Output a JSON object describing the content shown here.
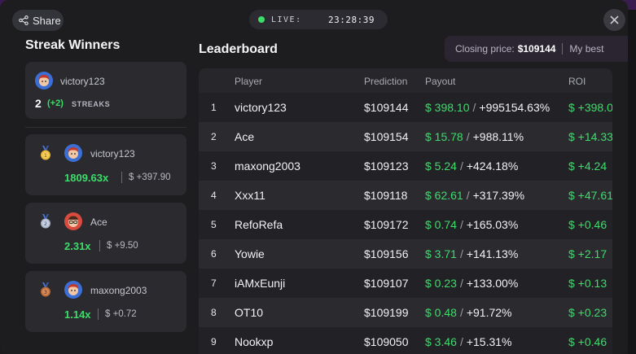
{
  "header": {
    "share_label": "Share",
    "live_label": "LIVE:",
    "time": "23:28:39"
  },
  "streak_winners": {
    "title": "Streak Winners",
    "top": {
      "user": "victory123",
      "count": "2",
      "plus": "(+2)",
      "label": "STREAKS"
    },
    "winners": [
      {
        "rank": "1",
        "medal": "gold-medal-icon",
        "user": "victory123",
        "multiplier": "1809.63x",
        "profit": "$ +397.90"
      },
      {
        "rank": "2",
        "medal": "silver-medal-icon",
        "user": "Ace",
        "multiplier": "2.31x",
        "profit": "$ +9.50"
      },
      {
        "rank": "3",
        "medal": "bronze-medal-icon",
        "user": "maxong2003",
        "multiplier": "1.14x",
        "profit": "$ +0.72"
      }
    ]
  },
  "leaderboard": {
    "title": "Leaderboard",
    "closing_label": "Closing price:",
    "closing_value": "$109144",
    "my_best_label": "My best",
    "columns": {
      "player": "Player",
      "prediction": "Prediction",
      "payout": "Payout",
      "roi": "ROI"
    },
    "rows": [
      {
        "rank": "1",
        "player": "victory123",
        "prediction": "$109144",
        "payout": "$ 398.10",
        "percent": "+995154.63%",
        "roi": "$ +398.0"
      },
      {
        "rank": "2",
        "player": "Ace",
        "prediction": "$109154",
        "payout": "$ 15.78",
        "percent": "+988.11%",
        "roi": "$ +14.33"
      },
      {
        "rank": "3",
        "player": "maxong2003",
        "prediction": "$109123",
        "payout": "$ 5.24",
        "percent": "+424.18%",
        "roi": "$ +4.24"
      },
      {
        "rank": "4",
        "player": "Xxx11",
        "prediction": "$109118",
        "payout": "$ 62.61",
        "percent": "+317.39%",
        "roi": "$ +47.61"
      },
      {
        "rank": "5",
        "player": "RefoRefa",
        "prediction": "$109172",
        "payout": "$ 0.74",
        "percent": "+165.03%",
        "roi": "$ +0.46"
      },
      {
        "rank": "6",
        "player": "Yowie",
        "prediction": "$109156",
        "payout": "$ 3.71",
        "percent": "+141.13%",
        "roi": "$ +2.17"
      },
      {
        "rank": "7",
        "player": "iAMxEunji",
        "prediction": "$109107",
        "payout": "$ 0.23",
        "percent": "+133.00%",
        "roi": "$ +0.13"
      },
      {
        "rank": "8",
        "player": "OT10",
        "prediction": "$109199",
        "payout": "$ 0.48",
        "percent": "+91.72%",
        "roi": "$ +0.23"
      },
      {
        "rank": "9",
        "player": "Nookxp",
        "prediction": "$109050",
        "payout": "$ 3.46",
        "percent": "+15.31%",
        "roi": "$ +0.46"
      }
    ]
  },
  "colors": {
    "accent_green": "#3ddc6b",
    "live_dot": "#3ddc6b"
  }
}
